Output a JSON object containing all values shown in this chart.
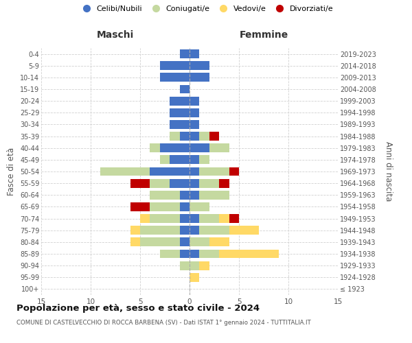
{
  "age_groups": [
    "100+",
    "95-99",
    "90-94",
    "85-89",
    "80-84",
    "75-79",
    "70-74",
    "65-69",
    "60-64",
    "55-59",
    "50-54",
    "45-49",
    "40-44",
    "35-39",
    "30-34",
    "25-29",
    "20-24",
    "15-19",
    "10-14",
    "5-9",
    "0-4"
  ],
  "birth_years": [
    "≤ 1923",
    "1924-1928",
    "1929-1933",
    "1934-1938",
    "1939-1943",
    "1944-1948",
    "1949-1953",
    "1954-1958",
    "1959-1963",
    "1964-1968",
    "1969-1973",
    "1974-1978",
    "1979-1983",
    "1984-1988",
    "1989-1993",
    "1994-1998",
    "1999-2003",
    "2004-2008",
    "2009-2013",
    "2014-2018",
    "2019-2023"
  ],
  "males": {
    "celibi": [
      0,
      0,
      0,
      1,
      1,
      1,
      1,
      1,
      1,
      2,
      4,
      2,
      3,
      1,
      2,
      2,
      2,
      1,
      3,
      3,
      1
    ],
    "coniugati": [
      0,
      0,
      1,
      2,
      4,
      4,
      3,
      3,
      3,
      2,
      5,
      1,
      1,
      1,
      0,
      0,
      0,
      0,
      0,
      0,
      0
    ],
    "vedovi": [
      0,
      0,
      0,
      0,
      1,
      1,
      1,
      0,
      0,
      0,
      0,
      0,
      0,
      0,
      0,
      0,
      0,
      0,
      0,
      0,
      0
    ],
    "divorziati": [
      0,
      0,
      0,
      0,
      0,
      0,
      0,
      2,
      0,
      2,
      0,
      0,
      0,
      0,
      0,
      0,
      0,
      0,
      0,
      0,
      0
    ]
  },
  "females": {
    "nubili": [
      0,
      0,
      0,
      1,
      0,
      1,
      1,
      0,
      1,
      1,
      1,
      1,
      2,
      1,
      1,
      1,
      1,
      0,
      2,
      2,
      1
    ],
    "coniugate": [
      0,
      0,
      1,
      2,
      2,
      3,
      2,
      2,
      3,
      2,
      3,
      1,
      2,
      1,
      0,
      0,
      0,
      0,
      0,
      0,
      0
    ],
    "vedove": [
      0,
      1,
      1,
      6,
      2,
      3,
      1,
      0,
      0,
      0,
      0,
      0,
      0,
      0,
      0,
      0,
      0,
      0,
      0,
      0,
      0
    ],
    "divorziate": [
      0,
      0,
      0,
      0,
      0,
      0,
      1,
      0,
      0,
      1,
      1,
      0,
      0,
      1,
      0,
      0,
      0,
      0,
      0,
      0,
      0
    ]
  },
  "colors": {
    "celibi": "#4472C4",
    "coniugati": "#C5D9A0",
    "vedovi": "#FFD966",
    "divorziati": "#C00000"
  },
  "xlim": 15,
  "title": "Popolazione per età, sesso e stato civile - 2024",
  "subtitle": "COMUNE DI CASTELVECCHIO DI ROCCA BARBENA (SV) - Dati ISTAT 1° gennaio 2024 - TUTTITALIA.IT",
  "ylabel_left": "Fasce di età",
  "ylabel_right": "Anni di nascita",
  "xlabel_males": "Maschi",
  "xlabel_females": "Femmine",
  "legend_labels": [
    "Celibi/Nubili",
    "Coniugati/e",
    "Vedovi/e",
    "Divorziati/e"
  ],
  "bg_color": "#ffffff",
  "grid_color": "#d0d0d0"
}
